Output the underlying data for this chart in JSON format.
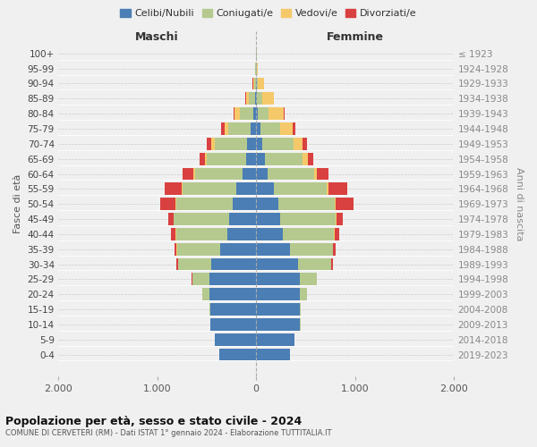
{
  "age_groups": [
    "0-4",
    "5-9",
    "10-14",
    "15-19",
    "20-24",
    "25-29",
    "30-34",
    "35-39",
    "40-44",
    "45-49",
    "50-54",
    "55-59",
    "60-64",
    "65-69",
    "70-74",
    "75-79",
    "80-84",
    "85-89",
    "90-94",
    "95-99",
    "100+"
  ],
  "birth_years": [
    "2019-2023",
    "2014-2018",
    "2009-2013",
    "2004-2008",
    "1999-2003",
    "1994-1998",
    "1989-1993",
    "1984-1988",
    "1979-1983",
    "1974-1978",
    "1969-1973",
    "1964-1968",
    "1959-1963",
    "1954-1958",
    "1949-1953",
    "1944-1948",
    "1939-1943",
    "1934-1938",
    "1929-1933",
    "1924-1928",
    "≤ 1923"
  ],
  "maschi": {
    "celibi": [
      370,
      420,
      460,
      460,
      470,
      475,
      450,
      360,
      290,
      270,
      240,
      200,
      140,
      105,
      90,
      60,
      30,
      12,
      5,
      3,
      2
    ],
    "coniugati": [
      0,
      0,
      2,
      8,
      70,
      170,
      340,
      440,
      520,
      560,
      570,
      540,
      480,
      390,
      330,
      220,
      130,
      65,
      18,
      5,
      2
    ],
    "vedovi": [
      0,
      0,
      0,
      0,
      2,
      2,
      2,
      2,
      3,
      5,
      8,
      10,
      15,
      20,
      30,
      40,
      55,
      28,
      10,
      2,
      0
    ],
    "divorziati": [
      0,
      0,
      0,
      0,
      3,
      5,
      10,
      25,
      45,
      55,
      155,
      170,
      110,
      55,
      45,
      35,
      12,
      4,
      2,
      0,
      0
    ]
  },
  "femmine": {
    "nubili": [
      340,
      390,
      445,
      445,
      440,
      445,
      425,
      340,
      265,
      245,
      220,
      175,
      120,
      85,
      65,
      40,
      18,
      8,
      4,
      2,
      2
    ],
    "coniugate": [
      0,
      0,
      2,
      8,
      70,
      165,
      335,
      435,
      520,
      555,
      570,
      535,
      465,
      385,
      315,
      200,
      110,
      50,
      15,
      4,
      1
    ],
    "vedove": [
      0,
      0,
      0,
      0,
      2,
      2,
      2,
      3,
      5,
      8,
      10,
      18,
      30,
      55,
      90,
      125,
      150,
      120,
      58,
      8,
      2
    ],
    "divorziate": [
      0,
      0,
      0,
      0,
      3,
      5,
      10,
      28,
      48,
      65,
      180,
      195,
      120,
      55,
      45,
      30,
      10,
      5,
      2,
      0,
      0
    ]
  },
  "colors": {
    "celibi": "#4a7eb5",
    "coniugati": "#b5c98e",
    "vedovi": "#f5c96a",
    "divorziati": "#d94040"
  },
  "xlim": 2000,
  "title": "Popolazione per età, sesso e stato civile - 2024",
  "subtitle": "COMUNE DI CERVETERI (RM) - Dati ISTAT 1° gennaio 2024 - Elaborazione TUTTITALIA.IT",
  "xlabel_left": "Maschi",
  "xlabel_right": "Femmine",
  "ylabel_left": "Fasce di età",
  "ylabel_right": "Anni di nascita",
  "legend_labels": [
    "Celibi/Nubili",
    "Coniugati/e",
    "Vedovi/e",
    "Divorziati/e"
  ],
  "bg_color": "#f0f0f0",
  "plot_bg": "#f0f0f0"
}
